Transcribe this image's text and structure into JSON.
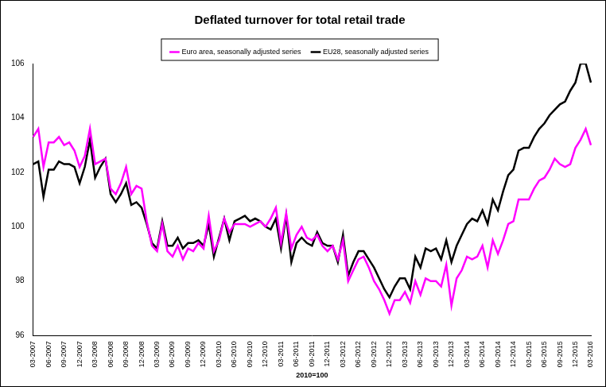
{
  "chart_data": {
    "type": "line",
    "title": "Deflated turnover for total retail trade",
    "x_label": "2010=100",
    "categories": [
      "03-2007",
      null,
      null,
      "06-2007",
      null,
      null,
      "09-2007",
      null,
      null,
      "12-2007",
      null,
      null,
      "03-2008",
      null,
      null,
      "06-2008",
      null,
      null,
      "09-2008",
      null,
      null,
      "12-2008",
      null,
      null,
      "03-2009",
      null,
      null,
      "06-2009",
      null,
      null,
      "09-2009",
      null,
      null,
      "12-2009",
      null,
      null,
      "03-2010",
      null,
      null,
      "06-2010",
      null,
      null,
      "09-2010",
      null,
      null,
      "12-2010",
      null,
      null,
      "03-2011",
      null,
      null,
      "06-2011",
      null,
      null,
      "09-2011",
      null,
      null,
      "12-2011",
      null,
      null,
      "03-2012",
      null,
      null,
      "06-2012",
      null,
      null,
      "09-2012",
      null,
      null,
      "12-2012",
      null,
      null,
      "03-2013",
      null,
      null,
      "06-2013",
      null,
      null,
      "09-2013",
      null,
      null,
      "12-2013",
      null,
      null,
      "03-2014",
      null,
      null,
      "06-2014",
      null,
      null,
      "09-2014",
      null,
      null,
      "12-2014",
      null,
      null,
      "03-2015",
      null,
      null,
      "06-2015",
      null,
      null,
      "09-2015",
      null,
      null,
      "12-2015",
      null,
      null,
      "03-2016"
    ],
    "series": [
      {
        "name": "Euro area, seasonally adjusted series",
        "color": "#ff00ff",
        "values": [
          103.3,
          103.6,
          102.2,
          103.1,
          103.1,
          103.3,
          103.0,
          103.1,
          102.8,
          102.2,
          102.6,
          103.6,
          102.3,
          102.4,
          102.5,
          101.4,
          101.2,
          101.6,
          102.2,
          101.2,
          101.5,
          101.4,
          100.2,
          99.3,
          99.1,
          100.1,
          99.1,
          98.9,
          99.3,
          98.8,
          99.2,
          99.1,
          99.4,
          99.2,
          100.4,
          99.1,
          99.5,
          100.3,
          99.8,
          100.1,
          100.1,
          100.1,
          100.0,
          100.1,
          100.2,
          100.0,
          100.3,
          100.7,
          99.4,
          100.5,
          99.2,
          99.7,
          100.0,
          99.6,
          99.5,
          99.7,
          99.3,
          99.1,
          99.3,
          98.8,
          99.5,
          98.0,
          98.4,
          98.8,
          98.9,
          98.5,
          98.0,
          97.7,
          97.3,
          96.8,
          97.3,
          97.3,
          97.6,
          97.2,
          98.0,
          97.5,
          98.1,
          98.0,
          98.0,
          97.8,
          98.6,
          97.1,
          98.1,
          98.4,
          98.9,
          98.8,
          98.9,
          99.3,
          98.5,
          99.5,
          99.0,
          99.5,
          100.1,
          100.2,
          101.0,
          101.0,
          101.0,
          101.4,
          101.7,
          101.8,
          102.1,
          102.5,
          102.3,
          102.2,
          102.3,
          102.9,
          103.2,
          103.6,
          103.0
        ]
      },
      {
        "name": "EU28, seasonally adjusted series",
        "color": "#000000",
        "values": [
          102.3,
          102.4,
          101.1,
          102.1,
          102.1,
          102.4,
          102.3,
          102.3,
          102.2,
          101.6,
          102.2,
          103.2,
          101.8,
          102.2,
          102.5,
          101.2,
          100.9,
          101.2,
          101.6,
          100.8,
          100.9,
          100.7,
          100.1,
          99.4,
          99.2,
          100.2,
          99.3,
          99.3,
          99.6,
          99.2,
          99.4,
          99.4,
          99.5,
          99.3,
          100.1,
          98.9,
          99.6,
          100.3,
          99.5,
          100.2,
          100.3,
          100.4,
          100.2,
          100.3,
          100.2,
          100.0,
          99.9,
          100.3,
          99.2,
          100.4,
          98.7,
          99.4,
          99.6,
          99.4,
          99.3,
          99.8,
          99.4,
          99.3,
          99.3,
          98.7,
          99.7,
          98.2,
          98.7,
          99.1,
          99.1,
          98.8,
          98.5,
          98.1,
          97.7,
          97.4,
          97.8,
          98.1,
          98.1,
          97.7,
          98.9,
          98.5,
          99.2,
          99.1,
          99.2,
          98.8,
          99.5,
          98.7,
          99.3,
          99.7,
          100.1,
          100.3,
          100.2,
          100.6,
          100.1,
          101.0,
          100.6,
          101.3,
          101.9,
          102.1,
          102.8,
          102.9,
          102.9,
          103.3,
          103.6,
          103.8,
          104.1,
          104.3,
          104.5,
          104.6,
          105.0,
          105.3,
          106.0,
          106.0,
          105.3
        ]
      }
    ],
    "ylim": [
      96,
      106
    ],
    "yticks": [
      96,
      98,
      100,
      102,
      104,
      106
    ],
    "grid": false,
    "legend": "top"
  }
}
